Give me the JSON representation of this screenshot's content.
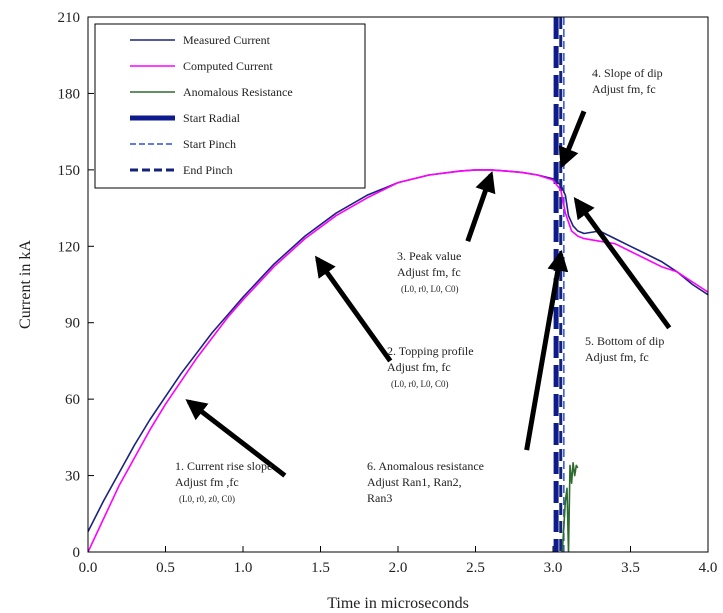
{
  "chart_data": {
    "type": "line",
    "xlabel": "Time in microseconds",
    "ylabel": "Current in kA",
    "xlim": [
      0,
      4.0
    ],
    "ylim": [
      0,
      210
    ],
    "xticks": [
      "0.0",
      "0.5",
      "1.0",
      "1.5",
      "2.0",
      "2.5",
      "3.0",
      "3.5",
      "4.0"
    ],
    "yticks": [
      "0",
      "30",
      "60",
      "90",
      "120",
      "150",
      "180",
      "210"
    ],
    "legend_position": "top-left",
    "series": [
      {
        "name": "Measured Current",
        "color": "#1a237e",
        "style": "solid",
        "x": [
          0.0,
          0.1,
          0.2,
          0.3,
          0.4,
          0.5,
          0.6,
          0.7,
          0.8,
          0.9,
          1.0,
          1.2,
          1.4,
          1.6,
          1.8,
          2.0,
          2.2,
          2.4,
          2.5,
          2.6,
          2.7,
          2.8,
          2.9,
          3.0,
          3.05,
          3.08,
          3.1,
          3.13,
          3.16,
          3.2,
          3.3,
          3.4,
          3.5,
          3.6,
          3.7,
          3.8,
          3.9,
          4.0
        ],
        "y": [
          8,
          20,
          31,
          42,
          52,
          61,
          70,
          78,
          86,
          93,
          100,
          113,
          124,
          133,
          140,
          145,
          148,
          149.5,
          150,
          150,
          149.5,
          149,
          148,
          146.5,
          144,
          140,
          132,
          128,
          126,
          125,
          126,
          123,
          120,
          117,
          114,
          110,
          105,
          101
        ]
      },
      {
        "name": "Computed Current",
        "color": "#ff00ff",
        "style": "solid",
        "x": [
          0.0,
          0.1,
          0.2,
          0.3,
          0.4,
          0.5,
          0.6,
          0.7,
          0.8,
          0.9,
          1.0,
          1.2,
          1.4,
          1.6,
          1.8,
          2.0,
          2.2,
          2.4,
          2.5,
          2.6,
          2.7,
          2.8,
          2.9,
          3.0,
          3.05,
          3.08,
          3.12,
          3.16,
          3.2,
          3.3,
          3.4,
          3.5,
          3.6,
          3.7,
          3.8,
          3.9,
          4.0
        ],
        "y": [
          0,
          13,
          26,
          37,
          48,
          58,
          67,
          76,
          84,
          92,
          99,
          112,
          123,
          132,
          139,
          145,
          148,
          149.5,
          150,
          150,
          149.5,
          149,
          148,
          146,
          142,
          133,
          126,
          124,
          123,
          122,
          121,
          118,
          115,
          112,
          110,
          106,
          102
        ]
      },
      {
        "name": "Anomalous Resistance",
        "color": "#2e6b2e",
        "style": "solid",
        "x": [
          3.05,
          3.06,
          3.08,
          3.09,
          3.1,
          3.11,
          3.12,
          3.13,
          3.14,
          3.15,
          3.16
        ],
        "y": [
          0,
          0,
          20,
          25,
          0,
          34,
          27,
          35,
          30,
          34,
          33
        ]
      }
    ],
    "vlines": [
      {
        "name": "Start Radial",
        "x": 3.02,
        "color": "#0d1b8c",
        "style": "thick-dash"
      },
      {
        "name": "Start Pinch",
        "x": 3.07,
        "color": "#2f4fe0",
        "style": "thin-dash"
      },
      {
        "name": "End Pinch",
        "x": 3.05,
        "color": "#14237a",
        "style": "dash"
      }
    ],
    "annotations": [
      {
        "id": "ann1",
        "lines": [
          "1. Current rise slope",
          "Adjust fm ,fc"
        ],
        "params": "(L0, r0, z0, C0)",
        "arrow_from": [
          1.27,
          30
        ],
        "arrow_to": [
          0.65,
          59
        ]
      },
      {
        "id": "ann2",
        "lines": [
          "2. Topping profile",
          "Adjust fm, fc"
        ],
        "params": "(L0, r0, L0, C0)",
        "arrow_from": [
          1.95,
          75
        ],
        "arrow_to": [
          1.48,
          115
        ]
      },
      {
        "id": "ann3",
        "lines": [
          "3. Peak value",
          "Adjust fm, fc"
        ],
        "params": "(L0, r0, L0, C0)",
        "arrow_from": [
          2.45,
          122
        ],
        "arrow_to": [
          2.6,
          148
        ]
      },
      {
        "id": "ann4",
        "lines": [
          "4. Slope of dip",
          "Adjust fm, fc"
        ],
        "params": "",
        "arrow_from": [
          3.2,
          173
        ],
        "arrow_to": [
          3.06,
          152
        ]
      },
      {
        "id": "ann5",
        "lines": [
          "5. Bottom of dip",
          "Adjust fm, fc"
        ],
        "params": "",
        "arrow_from": [
          3.75,
          88
        ],
        "arrow_to": [
          3.15,
          138
        ]
      },
      {
        "id": "ann6",
        "lines": [
          "6. Anomalous resistance",
          "Adjust Ran1, Ran2,",
          "Ran3"
        ],
        "params": "",
        "arrow_from": [
          2.83,
          40
        ],
        "arrow_to": [
          3.05,
          117
        ]
      }
    ]
  }
}
